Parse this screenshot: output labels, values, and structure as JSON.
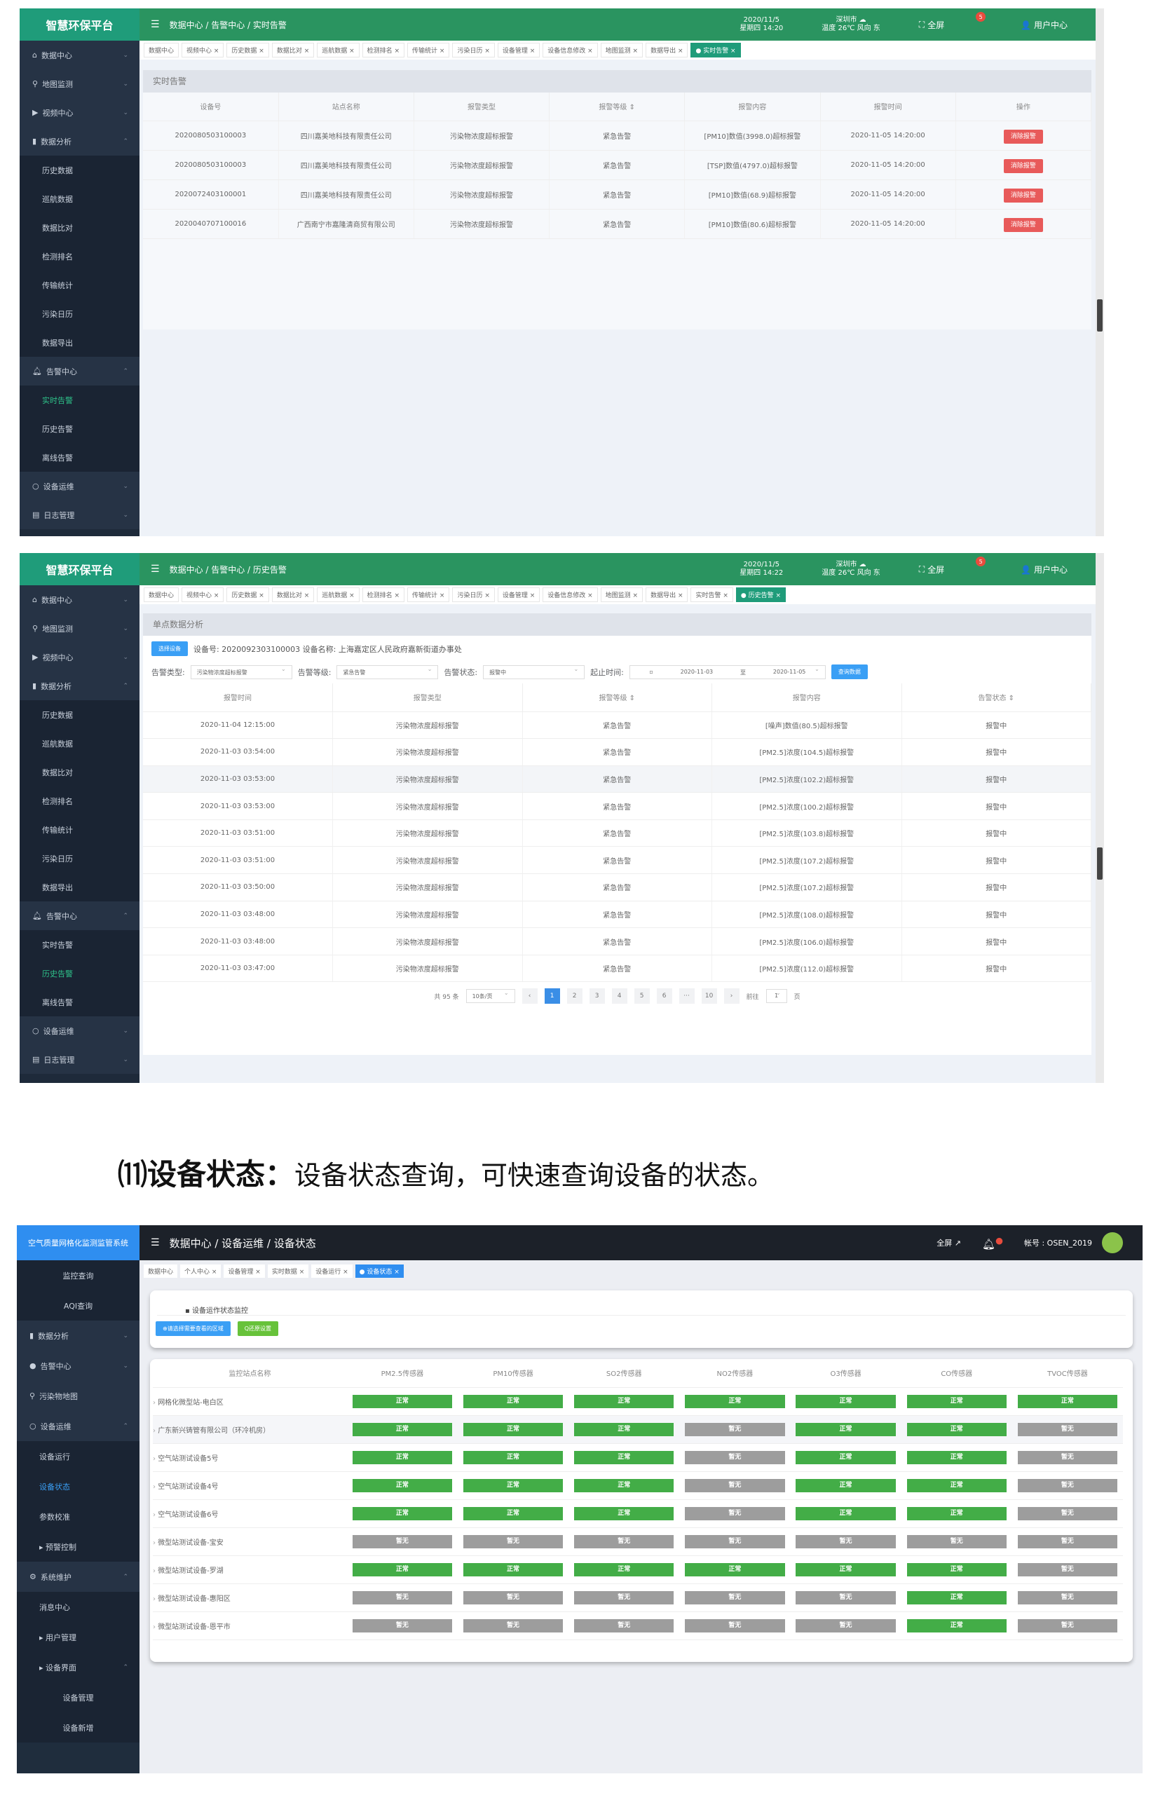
{
  "shot1": {
    "brand": "智慧环保平台",
    "breadcrumb": "数据中心 / 告警中心 / 实时告警",
    "date": "2020/11/5",
    "weekday_time": "星期四 14:20",
    "city": "深圳市 ☁",
    "weather": "温度 26℃ 风向 东",
    "fullscreen": "全屏",
    "badge": "5",
    "user": "用户中心",
    "sidebar": [
      {
        "label": "数据中心",
        "icon": "home-icon",
        "type": "grp"
      },
      {
        "label": "地图监测",
        "icon": "map-pin-icon",
        "type": "grp"
      },
      {
        "label": "视频中心",
        "icon": "video-icon",
        "type": "grp"
      },
      {
        "label": "数据分析",
        "icon": "bar-chart-icon",
        "type": "grp",
        "open": true
      },
      {
        "label": "历史数据",
        "type": "sub"
      },
      {
        "label": "巡航数据",
        "type": "sub"
      },
      {
        "label": "数据比对",
        "type": "sub"
      },
      {
        "label": "检测排名",
        "type": "sub"
      },
      {
        "label": "传输统计",
        "type": "sub"
      },
      {
        "label": "污染日历",
        "type": "sub"
      },
      {
        "label": "数据导出",
        "type": "sub"
      },
      {
        "label": "告警中心",
        "icon": "bell-icon",
        "type": "grp",
        "open": true
      },
      {
        "label": "实时告警",
        "type": "sub",
        "active": true
      },
      {
        "label": "历史告警",
        "type": "sub"
      },
      {
        "label": "离线告警",
        "type": "sub"
      },
      {
        "label": "设备运维",
        "icon": "circle-icon",
        "type": "grp"
      },
      {
        "label": "日志管理",
        "icon": "log-icon",
        "type": "grp"
      }
    ],
    "tabs": [
      "数据中心",
      "视频中心",
      "历史数据",
      "数据比对",
      "巡航数据",
      "检测排名",
      "传输统计",
      "污染日历",
      "设备管理",
      "设备信息修改",
      "地图监测",
      "数据导出",
      "● 实时告警"
    ],
    "active_tab": 12,
    "panel_title": "实时告警",
    "columns": [
      "设备号",
      "站点名称",
      "报警类型",
      "报警等级 ⇕",
      "报警内容",
      "报警时间",
      "操作"
    ],
    "rows": [
      [
        "2020080503100003",
        "四川嘉美地科技有限责任公司",
        "污染物浓度超标报警",
        "紧急告警",
        "[PM10]数值(3998.0)超标报警",
        "2020-11-05 14:20:00"
      ],
      [
        "2020080503100003",
        "四川嘉美地科技有限责任公司",
        "污染物浓度超标报警",
        "紧急告警",
        "[TSP]数值(4797.0)超标报警",
        "2020-11-05 14:20:00"
      ],
      [
        "2020072403100001",
        "四川嘉美地科技有限责任公司",
        "污染物浓度超标报警",
        "紧急告警",
        "[PM10]数值(68.9)超标报警",
        "2020-11-05 14:20:00"
      ],
      [
        "2020040707100016",
        "广西南宁市嘉隆清商贸有限公司",
        "污染物浓度超标报警",
        "紧急告警",
        "[PM10]数值(80.6)超标报警",
        "2020-11-05 14:20:00"
      ]
    ],
    "action_label": "消除报警"
  },
  "shot2": {
    "brand": "智慧环保平台",
    "breadcrumb": "数据中心 / 告警中心 / 历史告警",
    "date": "2020/11/5",
    "weekday_time": "星期四 14:22",
    "city": "深圳市 ☁",
    "weather": "温度 26℃ 风向 东",
    "fullscreen": "全屏",
    "badge": "5",
    "user": "用户中心",
    "sidebar_active": "历史告警",
    "tabs": [
      "数据中心",
      "视频中心",
      "历史数据",
      "数据比对",
      "巡航数据",
      "检测排名",
      "传输统计",
      "污染日历",
      "设备管理",
      "设备信息修改",
      "地图监测",
      "数据导出",
      "实时告警",
      "● 历史告警"
    ],
    "active_tab": 13,
    "panel_title": "单点数据分析",
    "select_device": "选择设备",
    "device_info": "设备号: 2020092303100003  设备名称: 上海嘉定区人民政府嘉新街道办事处",
    "filters": {
      "type_label": "告警类型:",
      "type_value": "污染物浓度超标报警",
      "level_label": "告警等级:",
      "level_value": "紧急告警",
      "status_label": "告警状态:",
      "status_value": "报警中",
      "range_label": "起止时间:",
      "start": "2020-11-03",
      "to": "至",
      "end": "2020-11-05",
      "query": "查询数据"
    },
    "columns": [
      "报警时间",
      "报警类型",
      "报警等级 ⇕",
      "报警内容",
      "告警状态 ⇕"
    ],
    "rows": [
      [
        "2020-11-04 12:15:00",
        "污染物浓度超标报警",
        "紧急告警",
        "[噪声]数值(80.5)超标报警",
        "报警中"
      ],
      [
        "2020-11-03 03:54:00",
        "污染物浓度超标报警",
        "紧急告警",
        "[PM2.5]浓度(104.5)超标报警",
        "报警中"
      ],
      [
        "2020-11-03 03:53:00",
        "污染物浓度超标报警",
        "紧急告警",
        "[PM2.5]浓度(102.2)超标报警",
        "报警中"
      ],
      [
        "2020-11-03 03:53:00",
        "污染物浓度超标报警",
        "紧急告警",
        "[PM2.5]浓度(100.2)超标报警",
        "报警中"
      ],
      [
        "2020-11-03 03:51:00",
        "污染物浓度超标报警",
        "紧急告警",
        "[PM2.5]浓度(103.8)超标报警",
        "报警中"
      ],
      [
        "2020-11-03 03:51:00",
        "污染物浓度超标报警",
        "紧急告警",
        "[PM2.5]浓度(107.2)超标报警",
        "报警中"
      ],
      [
        "2020-11-03 03:50:00",
        "污染物浓度超标报警",
        "紧急告警",
        "[PM2.5]浓度(107.2)超标报警",
        "报警中"
      ],
      [
        "2020-11-03 03:48:00",
        "污染物浓度超标报警",
        "紧急告警",
        "[PM2.5]浓度(108.0)超标报警",
        "报警中"
      ],
      [
        "2020-11-03 03:48:00",
        "污染物浓度超标报警",
        "紧急告警",
        "[PM2.5]浓度(106.0)超标报警",
        "报警中"
      ],
      [
        "2020-11-03 03:47:00",
        "污染物浓度超标报警",
        "紧急告警",
        "[PM2.5]浓度(112.0)超标报警",
        "报警中"
      ]
    ],
    "pagination": {
      "total": "共 95 条",
      "page_size": "10条/页",
      "pages": [
        "1",
        "2",
        "3",
        "4",
        "5",
        "6",
        "···",
        "10"
      ],
      "current": "1",
      "goto_label": "前往",
      "goto_value": "1",
      "page_unit": "页"
    }
  },
  "heading": {
    "number": "⑾",
    "title": "设备状态：",
    "text": "设备状态查询，可快速查询设备的状态。"
  },
  "shot3": {
    "brand": "空气质量网格化监测监管系统",
    "breadcrumb": "数据中心 / 设备运维 / 设备状态",
    "fullscreen": "全屏 ↗",
    "account": "帐号 : OSEN_2019",
    "sidebar": [
      {
        "label": "监控查询",
        "type": "sub2"
      },
      {
        "label": "AQI查询",
        "type": "sub2"
      },
      {
        "label": "数据分析",
        "icon": "bar-chart-icon",
        "type": "grp",
        "chev": "⌄"
      },
      {
        "label": "告警中心",
        "icon": "alert-icon",
        "type": "grp",
        "chev": "⌄"
      },
      {
        "label": "污染物地图",
        "icon": "map-pin-icon",
        "type": "grp"
      },
      {
        "label": "设备运维",
        "icon": "circle-icon",
        "type": "grp",
        "chev": "⌃"
      },
      {
        "label": "设备运行",
        "type": "sub"
      },
      {
        "label": "设备状态",
        "type": "sub",
        "active": true
      },
      {
        "label": "参数校准",
        "type": "sub"
      },
      {
        "label": "▸ 预警控制",
        "type": "sub"
      },
      {
        "label": "系统维护",
        "icon": "gear-icon",
        "type": "grp",
        "chev": "⌃"
      },
      {
        "label": "消息中心",
        "type": "sub"
      },
      {
        "label": "▸ 用户管理",
        "type": "sub"
      },
      {
        "label": "▸ 设备界面",
        "type": "sub",
        "chev": "⌃"
      },
      {
        "label": "设备管理",
        "type": "sub2"
      },
      {
        "label": "设备新增",
        "type": "sub2"
      }
    ],
    "tabs": [
      "数据中心",
      "个人中心",
      "设备管理",
      "实时数据",
      "设备运行",
      "● 设备状态"
    ],
    "active_tab": 5,
    "section_title": "设备运作状态监控",
    "region_button": "⊕请选择需要查看的区域",
    "reset_button": "Q还原设置",
    "columns": [
      "监控站点名称",
      "PM2.5传感器",
      "PM10传感器",
      "SO2传感器",
      "NO2传感器",
      "O3传感器",
      "CO传感器",
      "TVOC传感器"
    ],
    "status_labels": {
      "ok": "正常",
      "na": "暂无"
    },
    "colors": {
      "ok": "#43ad47",
      "na": "#9d9d9d"
    },
    "rows": [
      {
        "name": "网格化微型站-电白区",
        "s": [
          "ok",
          "ok",
          "ok",
          "ok",
          "ok",
          "ok",
          "ok"
        ]
      },
      {
        "name": "广东新兴铸管有限公司（环冷机房）",
        "s": [
          "ok",
          "ok",
          "ok",
          "na",
          "ok",
          "ok",
          "na"
        ]
      },
      {
        "name": "空气站测试设备5号",
        "s": [
          "ok",
          "ok",
          "ok",
          "na",
          "ok",
          "ok",
          "na"
        ]
      },
      {
        "name": "空气站测试设备4号",
        "s": [
          "ok",
          "ok",
          "ok",
          "na",
          "ok",
          "ok",
          "na"
        ]
      },
      {
        "name": "空气站测试设备6号",
        "s": [
          "ok",
          "ok",
          "ok",
          "na",
          "ok",
          "ok",
          "na"
        ]
      },
      {
        "name": "微型站测试设备-宝安",
        "s": [
          "na",
          "na",
          "na",
          "na",
          "na",
          "na",
          "na"
        ]
      },
      {
        "name": "微型站测试设备-罗湖",
        "s": [
          "ok",
          "ok",
          "ok",
          "ok",
          "ok",
          "ok",
          "na"
        ]
      },
      {
        "name": "微型站测试设备-惠阳区",
        "s": [
          "na",
          "na",
          "na",
          "na",
          "na",
          "ok",
          "na"
        ]
      },
      {
        "name": "微型站测试设备-恩平市",
        "s": [
          "na",
          "na",
          "na",
          "na",
          "na",
          "ok",
          "na"
        ]
      }
    ]
  }
}
